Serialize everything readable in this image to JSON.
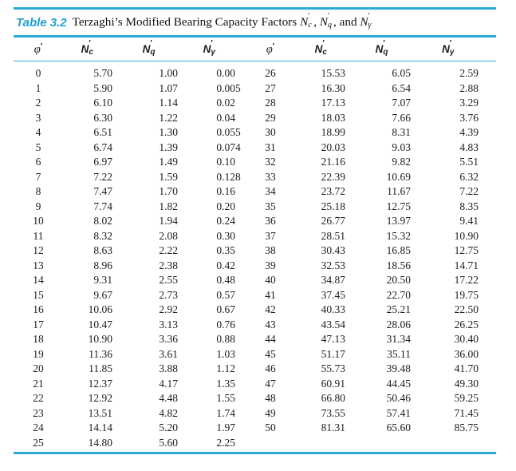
{
  "page": {
    "background": "#ffffff"
  },
  "colors": {
    "accent": "#1f9ed6",
    "rule": "#2ca9d2",
    "ink": "#1c1c1c"
  },
  "caption": {
    "label": "Table 3.2",
    "text": "Terzaghi’s Modified Bearing Capacity Factors",
    "factors": [
      {
        "base": "N",
        "sub": "c"
      },
      {
        "base": "N",
        "sub": "q"
      },
      {
        "base": "N",
        "sub": "γ"
      }
    ],
    "joiners": [
      ", ",
      ", and ",
      ""
    ]
  },
  "table": {
    "columns": [
      {
        "kind": "phi",
        "symbol": "φ"
      },
      {
        "kind": "factor",
        "symbol": "N",
        "sub": "c"
      },
      {
        "kind": "factor",
        "symbol": "N",
        "sub": "q"
      },
      {
        "kind": "factor",
        "symbol": "N",
        "sub": "γ"
      },
      {
        "kind": "phi",
        "symbol": "φ"
      },
      {
        "kind": "factor",
        "symbol": "N",
        "sub": "c"
      },
      {
        "kind": "factor",
        "symbol": "N",
        "sub": "q"
      },
      {
        "kind": "factor",
        "symbol": "N",
        "sub": "γ"
      }
    ],
    "rows_left": [
      [
        "0",
        "5.70",
        "1.00",
        "0.00"
      ],
      [
        "1",
        "5.90",
        "1.07",
        "0.005"
      ],
      [
        "2",
        "6.10",
        "1.14",
        "0.02"
      ],
      [
        "3",
        "6.30",
        "1.22",
        "0.04"
      ],
      [
        "4",
        "6.51",
        "1.30",
        "0.055"
      ],
      [
        "5",
        "6.74",
        "1.39",
        "0.074"
      ],
      [
        "6",
        "6.97",
        "1.49",
        "0.10"
      ],
      [
        "7",
        "7.22",
        "1.59",
        "0.128"
      ],
      [
        "8",
        "7.47",
        "1.70",
        "0.16"
      ],
      [
        "9",
        "7.74",
        "1.82",
        "0.20"
      ],
      [
        "10",
        "8.02",
        "1.94",
        "0.24"
      ],
      [
        "11",
        "8.32",
        "2.08",
        "0.30"
      ],
      [
        "12",
        "8.63",
        "2.22",
        "0.35"
      ],
      [
        "13",
        "8.96",
        "2.38",
        "0.42"
      ],
      [
        "14",
        "9.31",
        "2.55",
        "0.48"
      ],
      [
        "15",
        "9.67",
        "2.73",
        "0.57"
      ],
      [
        "16",
        "10.06",
        "2.92",
        "0.67"
      ],
      [
        "17",
        "10.47",
        "3.13",
        "0.76"
      ],
      [
        "18",
        "10.90",
        "3.36",
        "0.88"
      ],
      [
        "19",
        "11.36",
        "3.61",
        "1.03"
      ],
      [
        "20",
        "11.85",
        "3.88",
        "1.12"
      ],
      [
        "21",
        "12.37",
        "4.17",
        "1.35"
      ],
      [
        "22",
        "12.92",
        "4.48",
        "1.55"
      ],
      [
        "23",
        "13.51",
        "4.82",
        "1.74"
      ],
      [
        "24",
        "14.14",
        "5.20",
        "1.97"
      ],
      [
        "25",
        "14.80",
        "5.60",
        "2.25"
      ]
    ],
    "rows_right": [
      [
        "26",
        "15.53",
        "6.05",
        "2.59"
      ],
      [
        "27",
        "16.30",
        "6.54",
        "2.88"
      ],
      [
        "28",
        "17.13",
        "7.07",
        "3.29"
      ],
      [
        "29",
        "18.03",
        "7.66",
        "3.76"
      ],
      [
        "30",
        "18.99",
        "8.31",
        "4.39"
      ],
      [
        "31",
        "20.03",
        "9.03",
        "4.83"
      ],
      [
        "32",
        "21.16",
        "9.82",
        "5.51"
      ],
      [
        "33",
        "22.39",
        "10.69",
        "6.32"
      ],
      [
        "34",
        "23.72",
        "11.67",
        "7.22"
      ],
      [
        "35",
        "25.18",
        "12.75",
        "8.35"
      ],
      [
        "36",
        "26.77",
        "13.97",
        "9.41"
      ],
      [
        "37",
        "28.51",
        "15.32",
        "10.90"
      ],
      [
        "38",
        "30.43",
        "16.85",
        "12.75"
      ],
      [
        "39",
        "32.53",
        "18.56",
        "14.71"
      ],
      [
        "40",
        "34.87",
        "20.50",
        "17.22"
      ],
      [
        "41",
        "37.45",
        "22.70",
        "19.75"
      ],
      [
        "42",
        "40.33",
        "25.21",
        "22.50"
      ],
      [
        "43",
        "43.54",
        "28.06",
        "26.25"
      ],
      [
        "44",
        "47.13",
        "31.34",
        "30.40"
      ],
      [
        "45",
        "51.17",
        "35.11",
        "36.00"
      ],
      [
        "46",
        "55.73",
        "39.48",
        "41.70"
      ],
      [
        "47",
        "60.91",
        "44.45",
        "49.30"
      ],
      [
        "48",
        "66.80",
        "50.46",
        "59.25"
      ],
      [
        "49",
        "73.55",
        "57.41",
        "71.45"
      ],
      [
        "50",
        "81.31",
        "65.60",
        "85.75"
      ]
    ]
  }
}
